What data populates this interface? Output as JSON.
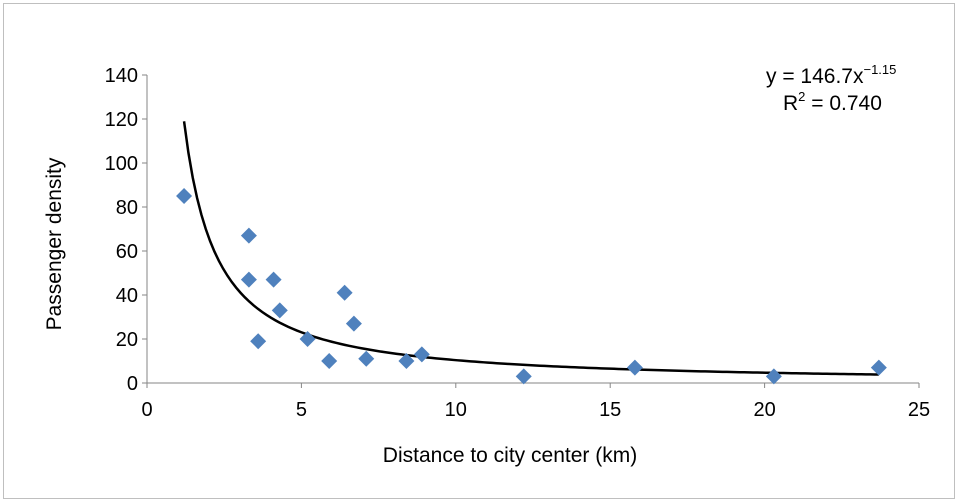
{
  "chart_data": {
    "type": "scatter",
    "title": "",
    "xlabel": "Distance to city center (km)",
    "ylabel": "Passenger density",
    "xlim": [
      0,
      25
    ],
    "ylim": [
      0,
      140
    ],
    "xticks": [
      0,
      5,
      10,
      15,
      20,
      25
    ],
    "yticks": [
      0,
      20,
      40,
      60,
      80,
      100,
      120,
      140
    ],
    "grid": false,
    "legend": "none",
    "marker": "diamond",
    "marker_color": "#4f81bd",
    "series": [
      {
        "points": [
          {
            "x": 1.2,
            "y": 85
          },
          {
            "x": 3.3,
            "y": 67
          },
          {
            "x": 3.3,
            "y": 47
          },
          {
            "x": 3.6,
            "y": 19
          },
          {
            "x": 4.1,
            "y": 47
          },
          {
            "x": 4.3,
            "y": 33
          },
          {
            "x": 5.2,
            "y": 20
          },
          {
            "x": 5.9,
            "y": 10
          },
          {
            "x": 6.4,
            "y": 41
          },
          {
            "x": 6.7,
            "y": 27
          },
          {
            "x": 7.1,
            "y": 11
          },
          {
            "x": 8.4,
            "y": 10
          },
          {
            "x": 8.9,
            "y": 13
          },
          {
            "x": 12.2,
            "y": 3
          },
          {
            "x": 15.8,
            "y": 7
          },
          {
            "x": 20.3,
            "y": 3
          },
          {
            "x": 23.7,
            "y": 7
          }
        ]
      }
    ],
    "trendline": {
      "type": "power",
      "a": 146.7,
      "b": -1.15,
      "x_range": [
        1.2,
        23.7
      ],
      "color": "#000000",
      "equation_text": "y = 146.7x",
      "equation_exponent": "−1.15",
      "r2_label": "R",
      "r2_superscript": "2",
      "r2_value_text": " = 0.740"
    }
  }
}
